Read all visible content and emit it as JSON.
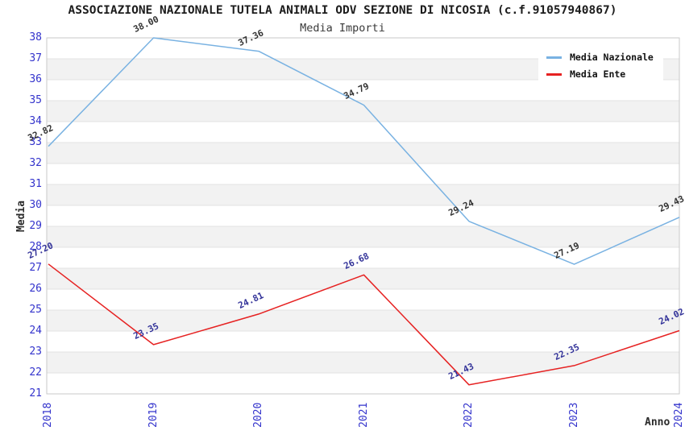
{
  "chart_data": {
    "type": "line",
    "title": "ASSOCIAZIONE NAZIONALE TUTELA ANIMALI ODV SEZIONE DI NICOSIA (c.f.91057940867)",
    "subtitle": "Media Importi",
    "xlabel": "Anno",
    "ylabel": "Media",
    "x": [
      "2018",
      "2019",
      "2020",
      "2021",
      "2022",
      "2023",
      "2024"
    ],
    "ylim": [
      21,
      38
    ],
    "y_ticks": [
      21,
      22,
      23,
      24,
      25,
      26,
      27,
      28,
      29,
      30,
      31,
      32,
      33,
      34,
      35,
      36,
      37,
      38
    ],
    "grid": "horizontal-bands",
    "band_color": "#f2f2f2",
    "gridline_color": "#e3e3e3",
    "border_color": "#c9c9c9",
    "axis_tick_color": "#3333cc",
    "legend_position": "top-right",
    "series": [
      {
        "name": "Media Nazionale",
        "color": "#79b2e2",
        "label_color": "#333333",
        "values": [
          32.82,
          38.0,
          37.36,
          34.79,
          29.24,
          27.19,
          29.43
        ],
        "labels": [
          "32.82",
          "38.00",
          "37.36",
          "34.79",
          "29.24",
          "27.19",
          "29.43"
        ]
      },
      {
        "name": "Media Ente",
        "color": "#e62222",
        "label_color": "#333399",
        "values": [
          27.2,
          23.35,
          24.81,
          26.68,
          21.43,
          22.35,
          24.02
        ],
        "labels": [
          "27.20",
          "23.35",
          "24.81",
          "26.68",
          "21.43",
          "22.35",
          "24.02"
        ]
      }
    ]
  }
}
